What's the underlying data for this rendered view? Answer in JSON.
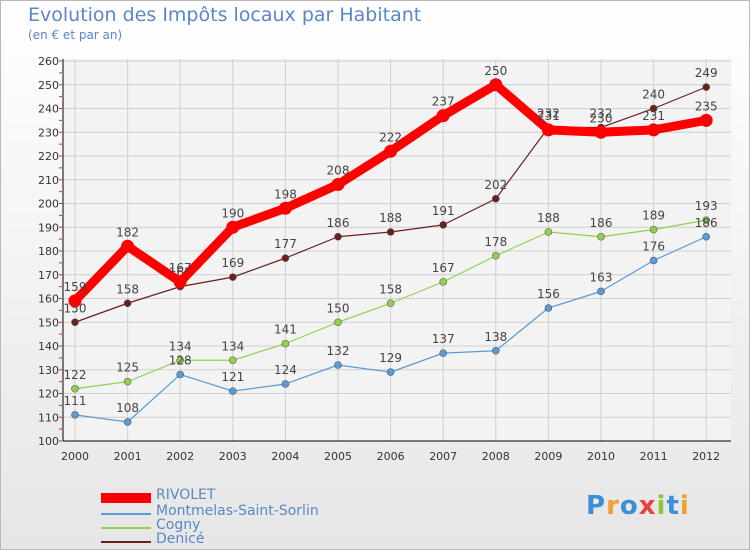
{
  "title": "Evolution des Impôts locaux par Habitant",
  "subtitle": "(en € et par an)",
  "logo": "Proxiti",
  "chart_data": {
    "type": "line",
    "title": "Evolution des Impôts locaux par Habitant",
    "subtitle": "(en € et par an)",
    "xlabel": "",
    "ylabel": "",
    "categories": [
      "2000",
      "2001",
      "2002",
      "2003",
      "2004",
      "2005",
      "2006",
      "2007",
      "2008",
      "2009",
      "2010",
      "2011",
      "2012"
    ],
    "ylim": [
      100,
      260
    ],
    "yticks": [
      100,
      110,
      120,
      130,
      140,
      150,
      160,
      170,
      180,
      190,
      200,
      210,
      220,
      230,
      240,
      250,
      260
    ],
    "grid": true,
    "legend_position": "bottom-left",
    "series": [
      {
        "name": "RIVOLET",
        "color": "#ff0000",
        "values": [
          159,
          182,
          167,
          190,
          198,
          208,
          222,
          237,
          250,
          231,
          230,
          231,
          235
        ]
      },
      {
        "name": "Montmelas-Saint-Sorlin",
        "color": "#5b9bd5",
        "values": [
          111,
          108,
          128,
          121,
          124,
          132,
          129,
          137,
          138,
          156,
          163,
          176,
          186
        ]
      },
      {
        "name": "Cogny",
        "color": "#92d050",
        "values": [
          122,
          125,
          134,
          134,
          141,
          150,
          158,
          167,
          178,
          188,
          186,
          189,
          193
        ]
      },
      {
        "name": "Denicé",
        "color": "#6b1f1f",
        "values": [
          150,
          158,
          165,
          169,
          177,
          186,
          188,
          191,
          202,
          232,
          232,
          240,
          249
        ]
      }
    ]
  }
}
